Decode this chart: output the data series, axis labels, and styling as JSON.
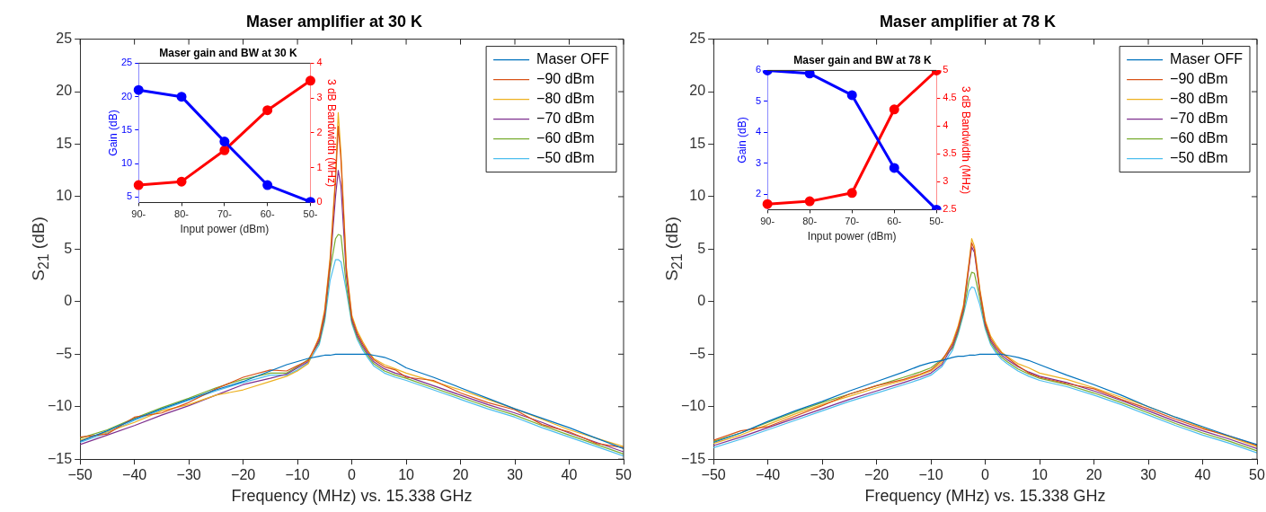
{
  "chart_data": [
    {
      "type": "line",
      "title": "Maser amplifier at 30 K",
      "xlabel": "Frequency (MHz) vs. 15.338 GHz",
      "ylabel": "S$_{21}$  (dB)",
      "x": [
        -50,
        -45,
        -40,
        -35,
        -30,
        -25,
        -20,
        -15,
        -12,
        -10,
        -8,
        -6,
        -5,
        -4,
        -3,
        -2.5,
        -2,
        -1,
        0,
        1,
        2,
        3,
        4,
        6,
        8,
        10,
        15,
        20,
        25,
        30,
        35,
        40,
        45,
        50
      ],
      "xlim": [
        -50,
        50
      ],
      "xticks": [
        -50,
        -40,
        -30,
        -20,
        -10,
        0,
        10,
        20,
        30,
        40,
        50
      ],
      "ylim": [
        -15,
        25
      ],
      "yticks": [
        -15,
        -10,
        -5,
        0,
        5,
        10,
        15,
        20,
        25
      ],
      "grid": false,
      "legend": "top right",
      "marker": "none",
      "line_style": "solid",
      "series": [
        {
          "name": "Maser OFF",
          "color": "#0072bd",
          "values": [
            -13.3,
            -12.3,
            -11.2,
            -10.2,
            -9.3,
            -8.4,
            -7.6,
            -6.6,
            -6.0,
            -5.7,
            -5.4,
            -5.2,
            -5.1,
            -5.1,
            -5.0,
            -5.0,
            -5.0,
            -5.0,
            -5.0,
            -5.0,
            -5.0,
            -5.0,
            -5.1,
            -5.3,
            -5.7,
            -6.3,
            -7.2,
            -8.2,
            -9.2,
            -10.2,
            -11.1,
            -12.0,
            -13.0,
            -14.0
          ]
        },
        {
          "name": "−90 dBm",
          "color": "#d95319",
          "values": [
            -12.9,
            -12.6,
            -11.0,
            -10.6,
            -9.6,
            -8.3,
            -7.2,
            -6.5,
            -6.6,
            -6.1,
            -5.6,
            -3.5,
            -1.0,
            3.8,
            11.5,
            16.7,
            13.5,
            3.0,
            -1.5,
            -3.0,
            -4.0,
            -4.8,
            -5.5,
            -6.2,
            -6.5,
            -7.2,
            -7.5,
            -8.7,
            -9.6,
            -10.3,
            -11.7,
            -12.4,
            -13.5,
            -13.9
          ]
        },
        {
          "name": "−80 dBm",
          "color": "#edb120",
          "values": [
            -13.2,
            -12.4,
            -11.5,
            -10.4,
            -9.8,
            -8.9,
            -8.4,
            -7.6,
            -7.1,
            -6.6,
            -5.9,
            -3.3,
            -0.8,
            4.2,
            12.0,
            18.0,
            14.2,
            3.3,
            -1.3,
            -2.8,
            -3.8,
            -4.7,
            -5.4,
            -6.0,
            -6.4,
            -6.8,
            -7.6,
            -8.4,
            -9.3,
            -10.2,
            -11.2,
            -12.2,
            -13.0,
            -13.8
          ]
        },
        {
          "name": "−70 dBm",
          "color": "#7e2f8e",
          "values": [
            -13.6,
            -12.7,
            -11.8,
            -10.8,
            -9.9,
            -8.9,
            -7.9,
            -7.3,
            -6.9,
            -6.3,
            -5.7,
            -3.7,
            -1.3,
            3.5,
            10.0,
            12.5,
            11.0,
            2.5,
            -1.7,
            -3.2,
            -4.2,
            -5.0,
            -5.7,
            -6.4,
            -6.8,
            -7.1,
            -8.0,
            -8.9,
            -9.8,
            -10.6,
            -11.5,
            -12.5,
            -13.4,
            -14.3
          ]
        },
        {
          "name": "−60 dBm",
          "color": "#77ac30",
          "values": [
            -13.0,
            -12.2,
            -11.1,
            -10.1,
            -9.2,
            -8.2,
            -7.4,
            -6.8,
            -6.8,
            -6.2,
            -5.5,
            -3.9,
            -1.6,
            3.0,
            6.0,
            6.4,
            6.3,
            1.5,
            -1.9,
            -3.4,
            -4.4,
            -5.2,
            -5.9,
            -6.6,
            -7.0,
            -7.3,
            -8.2,
            -9.1,
            -10.0,
            -10.8,
            -11.8,
            -12.7,
            -13.6,
            -14.5
          ]
        },
        {
          "name": "−50 dBm",
          "color": "#4dbeee",
          "values": [
            -13.4,
            -12.5,
            -11.3,
            -10.3,
            -9.4,
            -8.5,
            -7.7,
            -7.0,
            -7.0,
            -6.5,
            -5.8,
            -4.1,
            -1.9,
            2.0,
            4.0,
            4.0,
            3.8,
            1.0,
            -2.1,
            -3.6,
            -4.6,
            -5.4,
            -6.1,
            -6.8,
            -7.2,
            -7.5,
            -8.4,
            -9.3,
            -10.2,
            -11.0,
            -12.0,
            -12.9,
            -13.8,
            -14.7
          ]
        }
      ]
    },
    {
      "type": "line",
      "title": "Maser gain and BW at 30 K",
      "xlabel": "Input power (dBm)",
      "ylabel": "Gain (dB)",
      "y2label": "3 dB Bandwidth (MHz)",
      "categories": [
        "90-",
        "80-",
        "70-",
        "60-",
        "50-"
      ],
      "ylim": [
        4.2,
        25
      ],
      "yticks": [
        5,
        10,
        15,
        20,
        25
      ],
      "y2lim": [
        0,
        4
      ],
      "y2ticks": [
        0,
        1,
        2,
        3,
        4
      ],
      "grid": false,
      "marker": "circle",
      "series": [
        {
          "color": "#0000ff",
          "values": [
            21,
            20,
            13.3,
            6.8,
            4.3
          ]
        },
        {
          "color": "#ff0000",
          "axis": "y2",
          "values": [
            0.5,
            0.6,
            1.5,
            2.65,
            3.5
          ]
        }
      ]
    },
    {
      "type": "line",
      "title": "Maser amplifier at 78 K",
      "xlabel": "Frequency (MHz) vs. 15.338 GHz",
      "ylabel": "S$_{21}$  (dB)",
      "x": [
        -50,
        -45,
        -40,
        -35,
        -30,
        -25,
        -20,
        -15,
        -12,
        -10,
        -8,
        -6,
        -5,
        -4,
        -3,
        -2.5,
        -2,
        -1,
        0,
        1,
        2,
        3,
        4,
        6,
        8,
        10,
        15,
        20,
        25,
        30,
        35,
        40,
        45,
        50
      ],
      "xlim": [
        -50,
        50
      ],
      "xticks": [
        -50,
        -40,
        -30,
        -20,
        -10,
        0,
        10,
        20,
        30,
        40,
        50
      ],
      "ylim": [
        -15,
        25
      ],
      "yticks": [
        -15,
        -10,
        -5,
        0,
        5,
        10,
        15,
        20,
        25
      ],
      "grid": false,
      "legend": "top right",
      "marker": "none",
      "line_style": "solid",
      "series": [
        {
          "name": "Maser OFF",
          "color": "#0072bd",
          "values": [
            -13.4,
            -12.5,
            -11.4,
            -10.4,
            -9.5,
            -8.5,
            -7.6,
            -6.7,
            -6.1,
            -5.8,
            -5.6,
            -5.3,
            -5.2,
            -5.2,
            -5.1,
            -5.1,
            -5.1,
            -5.0,
            -5.0,
            -5.0,
            -5.0,
            -5.0,
            -5.1,
            -5.3,
            -5.6,
            -6.0,
            -7.0,
            -7.9,
            -8.9,
            -10.0,
            -11.0,
            -11.9,
            -12.8,
            -13.6
          ]
        },
        {
          "name": "−90 dBm",
          "color": "#d95319",
          "values": [
            -13.2,
            -12.3,
            -11.9,
            -10.9,
            -9.9,
            -8.8,
            -8.0,
            -7.4,
            -6.9,
            -6.5,
            -5.6,
            -4.0,
            -2.5,
            -0.5,
            3.5,
            5.6,
            5.0,
            1.0,
            -2.0,
            -3.5,
            -4.3,
            -4.9,
            -5.3,
            -6.1,
            -6.8,
            -7.2,
            -7.8,
            -8.3,
            -9.3,
            -10.2,
            -11.2,
            -12.1,
            -12.8,
            -13.7
          ]
        },
        {
          "name": "−80 dBm",
          "color": "#edb120",
          "values": [
            -13.5,
            -12.7,
            -11.7,
            -10.7,
            -9.8,
            -9.0,
            -8.2,
            -7.5,
            -7.0,
            -6.6,
            -5.8,
            -3.8,
            -2.3,
            -0.3,
            3.7,
            6.0,
            5.3,
            1.2,
            -1.8,
            -3.3,
            -4.1,
            -4.8,
            -5.2,
            -5.9,
            -6.3,
            -6.8,
            -7.4,
            -8.2,
            -9.1,
            -10.0,
            -11.0,
            -12.0,
            -12.9,
            -13.8
          ]
        },
        {
          "name": "−70 dBm",
          "color": "#7e2f8e",
          "values": [
            -13.7,
            -12.9,
            -12.0,
            -11.1,
            -10.2,
            -9.3,
            -8.5,
            -7.7,
            -7.2,
            -6.8,
            -6.0,
            -4.2,
            -2.7,
            -0.7,
            3.3,
            5.2,
            4.7,
            0.9,
            -2.2,
            -3.7,
            -4.5,
            -5.1,
            -5.5,
            -6.2,
            -6.7,
            -7.1,
            -7.7,
            -8.5,
            -9.4,
            -10.4,
            -11.4,
            -12.3,
            -13.1,
            -14.0
          ]
        },
        {
          "name": "−60 dBm",
          "color": "#77ac30",
          "values": [
            -13.3,
            -12.5,
            -11.5,
            -10.5,
            -9.6,
            -8.8,
            -8.0,
            -7.2,
            -6.7,
            -6.3,
            -5.5,
            -4.4,
            -2.9,
            -1.0,
            2.0,
            2.8,
            2.7,
            0.3,
            -2.4,
            -3.9,
            -4.7,
            -5.3,
            -5.7,
            -6.4,
            -6.9,
            -7.3,
            -7.9,
            -8.7,
            -9.6,
            -10.6,
            -11.6,
            -12.5,
            -13.3,
            -14.2
          ]
        },
        {
          "name": "−50 dBm",
          "color": "#4dbeee",
          "values": [
            -13.9,
            -13.1,
            -12.2,
            -11.3,
            -10.4,
            -9.5,
            -8.7,
            -7.9,
            -7.4,
            -7.0,
            -6.2,
            -4.6,
            -3.1,
            -1.2,
            1.0,
            1.4,
            1.3,
            -0.3,
            -2.6,
            -4.1,
            -4.9,
            -5.5,
            -5.9,
            -6.6,
            -7.1,
            -7.5,
            -8.1,
            -8.9,
            -9.8,
            -10.8,
            -11.8,
            -12.7,
            -13.5,
            -14.4
          ]
        }
      ]
    },
    {
      "type": "line",
      "title": "Maser gain and BW at 78 K",
      "xlabel": "Input power (dBm)",
      "ylabel": "Gain (dB)",
      "y2label": "3 dB Bandwidth (MHz)",
      "categories": [
        "90-",
        "80-",
        "70-",
        "60-",
        "50-"
      ],
      "ylim": [
        1.5,
        6
      ],
      "yticks": [
        2,
        3,
        4,
        5,
        6
      ],
      "y2lim": [
        2.5,
        5
      ],
      "y2ticks": [
        2.5,
        3,
        3.5,
        4,
        4.5,
        5
      ],
      "grid": false,
      "marker": "circle",
      "series": [
        {
          "color": "#0000ff",
          "values": [
            6.0,
            5.9,
            5.2,
            2.85,
            1.5
          ]
        },
        {
          "color": "#ff0000",
          "axis": "y2",
          "values": [
            2.6,
            2.65,
            2.8,
            4.3,
            5.0
          ]
        }
      ]
    }
  ]
}
